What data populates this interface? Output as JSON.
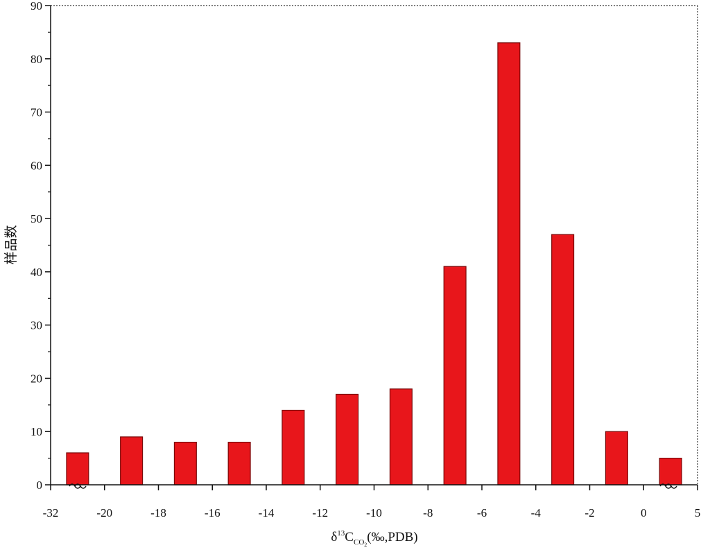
{
  "chart_data": {
    "type": "histogram",
    "xlabel_parts": [
      "δ",
      "13",
      "C",
      "CO",
      "2",
      "(‰,PDB)"
    ],
    "ylabel": "样品数",
    "bins": [
      -32,
      -20,
      -18,
      -16,
      -14,
      -12,
      -10,
      -8,
      -6,
      -4,
      -2,
      0,
      5
    ],
    "values": [
      6,
      9,
      8,
      8,
      14,
      17,
      18,
      41,
      83,
      47,
      10,
      5
    ],
    "color": "#e8161b",
    "axis_break": true,
    "ylim": [
      0,
      90
    ],
    "yticks": [
      0,
      10,
      20,
      30,
      40,
      50,
      60,
      70,
      80,
      90
    ],
    "xticks": [
      -32,
      -20,
      -18,
      -16,
      -14,
      -12,
      -10,
      -8,
      -6,
      -4,
      -2,
      0,
      5
    ]
  }
}
